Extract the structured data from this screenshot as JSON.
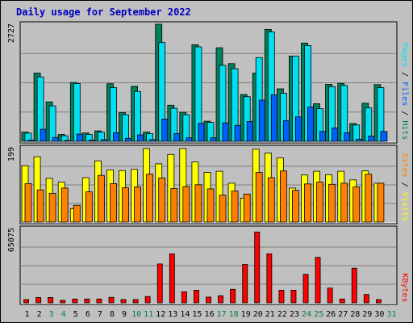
{
  "chart_data": {
    "type": "bar",
    "title": "Daily usage for September 2022",
    "colors": {
      "background": "#c0c0c0",
      "title": "#0000c0",
      "hits": "#00805c",
      "files": "#00e0f0",
      "pages": "#0060ff",
      "visits": "#ffff00",
      "sites": "#ff8000",
      "kbytes": "#ff0000",
      "weekend_label": "#008040",
      "weekday_label": "#000000",
      "axis_text": "#000000"
    },
    "categories": [
      "1",
      "2",
      "3",
      "4",
      "5",
      "6",
      "7",
      "8",
      "9",
      "10",
      "11",
      "12",
      "13",
      "14",
      "15",
      "16",
      "17",
      "18",
      "19",
      "20",
      "21",
      "22",
      "23",
      "24",
      "25",
      "26",
      "27",
      "28",
      "29",
      "30",
      "31"
    ],
    "weekend_days": [
      "3",
      "4",
      "10",
      "11",
      "17",
      "18",
      "24",
      "25",
      "31"
    ],
    "panels": [
      {
        "id": "hits-panel",
        "ymax_label": "2727",
        "ylim": [
          0,
          2727
        ],
        "series_label_parts": [
          {
            "text": "Pages",
            "color": "#00e0f0"
          },
          {
            "text": " / ",
            "color": "#000000"
          },
          {
            "text": "Files",
            "color": "#0060ff"
          },
          {
            "text": " / ",
            "color": "#000000"
          },
          {
            "text": "Hits",
            "color": "#00805c"
          }
        ],
        "series": [
          {
            "name": "Hits",
            "color": "#00805c",
            "values": [
              214,
              1590,
              918,
              160,
              1370,
              196,
              242,
              1340,
              667,
              1280,
              214,
              2727,
              841,
              675,
              2250,
              468,
              2180,
              1810,
              1090,
              1590,
              2607,
              1223,
              1986,
              2289,
              875,
              1326,
              1350,
              413,
              888,
              1320,
              0
            ]
          },
          {
            "name": "Files",
            "color": "#00e0f0",
            "values": [
              190,
              1498,
              826,
              130,
              1347,
              160,
              214,
              1250,
              620,
              1160,
              180,
              2300,
              770,
              620,
              2200,
              440,
              1770,
              1690,
              1040,
              1950,
              2547,
              1120,
              1985,
              2230,
              760,
              1273,
              1300,
              380,
              778,
              1250,
              0
            ]
          },
          {
            "name": "Pages",
            "color": "#0060ff",
            "values": [
              30,
              280,
              90,
              20,
              170,
              30,
              40,
              200,
              70,
              150,
              40,
              520,
              180,
              80,
              420,
              80,
              430,
              370,
              460,
              960,
              1080,
              480,
              570,
              800,
              230,
              310,
              200,
              50,
              120,
              230,
              0
            ]
          }
        ]
      },
      {
        "id": "visits-panel",
        "ymax_label": "199",
        "ylim": [
          0,
          199
        ],
        "series_label_parts": [
          {
            "text": "Sites",
            "color": "#ff8000"
          },
          {
            "text": " / ",
            "color": "#000000"
          },
          {
            "text": "Visits",
            "color": "#ffff00"
          }
        ],
        "series": [
          {
            "name": "Visits",
            "color": "#ffff00",
            "values": [
              151,
              175,
              117,
              107,
              36,
              119,
              164,
              140,
              138,
              141,
              197,
              156,
              181,
              197,
              161,
              133,
              136,
              104,
              64,
              195,
              185,
              172,
              91,
              126,
              136,
              127,
              136,
              113,
              137,
              104,
              0
            ]
          },
          {
            "name": "Sites",
            "color": "#ff8000",
            "values": [
              103,
              86,
              77,
              91,
              45,
              81,
              125,
              103,
              92,
              94,
              128,
              118,
              90,
              95,
              100,
              89,
              72,
              83,
              75,
              133,
              119,
              137,
              85,
              102,
              107,
              101,
              104,
              94,
              128,
              104,
              0
            ]
          }
        ]
      },
      {
        "id": "kbytes-panel",
        "ymax_label": "65075",
        "ylim": [
          0,
          65075
        ],
        "series_label_parts": [
          {
            "text": "KBytes",
            "color": "#ff0000"
          }
        ],
        "series": [
          {
            "name": "KBytes",
            "color": "#ff0000",
            "values": [
              2800,
              4700,
              4700,
              2100,
              3300,
              3300,
              3300,
              4800,
              2800,
              2800,
              5500,
              34000,
              42900,
              9600,
              11000,
              5000,
              6200,
              11800,
              33600,
              62000,
              42900,
              11000,
              11000,
              25000,
              39800,
              12900,
              3300,
              30300,
              7300,
              2800,
              0
            ]
          }
        ]
      }
    ]
  }
}
